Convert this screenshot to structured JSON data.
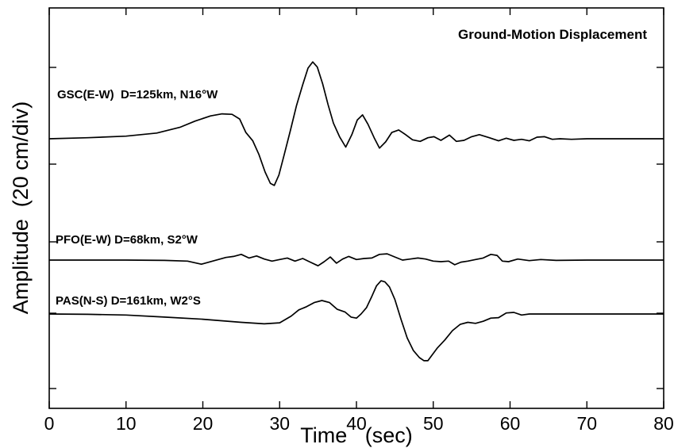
{
  "chart_data": {
    "type": "line",
    "title": "Ground-Motion Displacement",
    "xlabel": "Time   (sec)",
    "ylabel": "Amplitude  (20 cm/div)",
    "xlim": [
      0,
      80
    ],
    "xticks": [
      "0",
      "10",
      "20",
      "30",
      "40",
      "50",
      "60",
      "70",
      "80"
    ],
    "grid": false,
    "series": [
      {
        "name": "GSC(E-W)  D=125km, N16°W",
        "baseline": 0,
        "x": [
          0,
          5,
          10,
          14,
          17,
          19,
          21,
          22.5,
          23.8,
          24.8,
          25.6,
          26.5,
          27.3,
          28.1,
          28.8,
          29.3,
          29.9,
          30.6,
          31.4,
          32.2,
          33.0,
          33.7,
          34.3,
          34.9,
          35.6,
          36.3,
          37.0,
          37.8,
          38.6,
          39.4,
          40.1,
          40.8,
          41.5,
          42.3,
          43.0,
          43.8,
          44.6,
          45.5,
          46.4,
          47.3,
          48.3,
          49.3,
          50.1,
          51.0,
          52.1,
          53.0,
          54.0,
          55.0,
          56.0,
          57.3,
          58.5,
          59.5,
          60.5,
          61.5,
          62.5,
          63.5,
          64.5,
          65.5,
          66.5,
          68,
          70,
          75,
          80
        ],
        "y": [
          0,
          0.1,
          0.25,
          0.55,
          1.1,
          1.7,
          2.2,
          2.4,
          2.35,
          1.9,
          0.6,
          -0.2,
          -1.5,
          -3.2,
          -4.3,
          -4.5,
          -3.5,
          -1.5,
          0.8,
          3.2,
          5.2,
          6.8,
          7.4,
          6.9,
          5.3,
          3.3,
          1.5,
          0.2,
          -0.8,
          0.4,
          1.8,
          2.3,
          1.4,
          0.1,
          -0.9,
          -0.3,
          0.6,
          0.85,
          0.4,
          -0.1,
          -0.25,
          0.1,
          0.2,
          -0.15,
          0.35,
          -0.25,
          -0.15,
          0.2,
          0.4,
          0.1,
          -0.2,
          0.05,
          -0.15,
          -0.05,
          -0.2,
          0.15,
          0.2,
          -0.05,
          0.0,
          -0.05,
          0.0,
          0.0,
          0.0
        ]
      },
      {
        "name": "PFO(E-W) D=68km, S2°W",
        "baseline": 0,
        "x": [
          0,
          5,
          10,
          15,
          18,
          19.8,
          21.5,
          23,
          24,
          25,
          26,
          27,
          28,
          29,
          30,
          31,
          32,
          33,
          34,
          35,
          35.8,
          36.6,
          37.4,
          38.2,
          39,
          40,
          41,
          42,
          43,
          44,
          45,
          46,
          47,
          48,
          49,
          50,
          51,
          52,
          52.8,
          53.6,
          54.5,
          55.5,
          56.5,
          57.5,
          58.3,
          59,
          59.8,
          61,
          62.5,
          64,
          66,
          70,
          75,
          80
        ],
        "y": [
          0,
          0,
          0,
          -0.03,
          -0.1,
          -0.4,
          -0.05,
          0.25,
          0.35,
          0.55,
          0.2,
          0.4,
          0.1,
          -0.1,
          0.05,
          0.2,
          -0.1,
          0.15,
          -0.2,
          -0.55,
          -0.15,
          0.3,
          -0.3,
          0.1,
          0.35,
          0.05,
          0.15,
          0.2,
          0.55,
          0.6,
          0.3,
          0.0,
          0.1,
          0.2,
          0.1,
          -0.1,
          -0.15,
          -0.1,
          -0.45,
          -0.2,
          -0.1,
          0.05,
          0.2,
          0.55,
          0.45,
          -0.1,
          -0.15,
          0.1,
          -0.05,
          0.05,
          -0.03,
          0.0,
          0.0,
          0.0
        ]
      },
      {
        "name": "PAS(N-S) D=161km, W2°S",
        "baseline": 0,
        "x": [
          0,
          5,
          10,
          15,
          20,
          25,
          28,
          30,
          31.5,
          32.5,
          33.5,
          34.5,
          35.5,
          36.5,
          37.5,
          38.5,
          39.3,
          40.0,
          40.6,
          41.3,
          42.0,
          42.6,
          43.2,
          43.7,
          44.3,
          45.0,
          45.8,
          46.6,
          47.4,
          48.2,
          48.8,
          49.3,
          49.8,
          50.5,
          51.5,
          52.5,
          53.5,
          54.5,
          55.5,
          56.5,
          57.5,
          58.5,
          59.5,
          60.5,
          61.5,
          62.5,
          64,
          66,
          70,
          80
        ],
        "y": [
          0,
          -0.03,
          -0.1,
          -0.3,
          -0.5,
          -0.8,
          -0.95,
          -0.85,
          -0.2,
          0.4,
          0.7,
          1.1,
          1.3,
          1.1,
          0.45,
          0.2,
          -0.3,
          -0.4,
          0.0,
          0.6,
          1.7,
          2.7,
          3.2,
          3.1,
          2.6,
          1.4,
          -0.5,
          -2.3,
          -3.5,
          -4.2,
          -4.5,
          -4.5,
          -4.0,
          -3.3,
          -2.5,
          -1.6,
          -1.0,
          -0.8,
          -0.9,
          -0.7,
          -0.4,
          -0.35,
          0.1,
          0.15,
          -0.1,
          0.0,
          0.0,
          0.0,
          0.0,
          0.0
        ]
      }
    ]
  }
}
